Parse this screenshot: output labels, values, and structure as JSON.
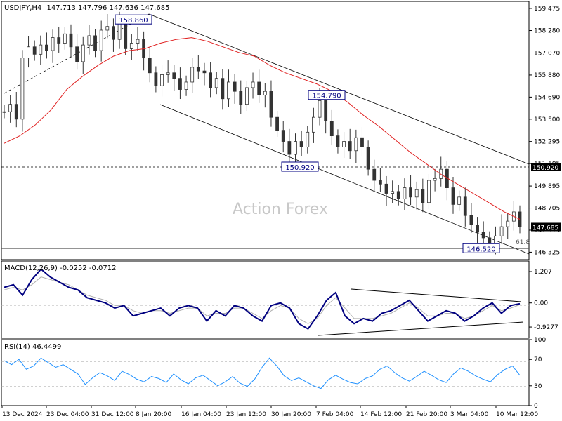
{
  "chart_data": [
    {
      "type": "candlestick",
      "title": "USDJPY,H4",
      "ohlc_text": "147.713 147.796 147.636 147.685",
      "watermark": "Action Forex",
      "ylim": [
        146.0,
        159.7
      ],
      "y_ticks": [
        "159.475",
        "158.280",
        "157.070",
        "155.880",
        "154.690",
        "153.500",
        "152.295",
        "151.105",
        "149.895",
        "148.705",
        "147.515",
        "146.325"
      ],
      "x_ticks": [
        "13 Dec 2024",
        "23 Dec 04:00",
        "31 Dec 12:00",
        "8 Jan 20:00",
        "16 Jan 04:00",
        "23 Jan 12:00",
        "30 Jan 20:00",
        "7 Feb 04:00",
        "14 Feb 12:00",
        "21 Feb 20:00",
        "3 Mar 04:00",
        "10 Mar 12:00"
      ],
      "close_series": [
        153.9,
        154.3,
        153.5,
        156.8,
        157.4,
        157.0,
        157.5,
        157.2,
        157.9,
        157.6,
        158.1,
        157.4,
        156.6,
        157.5,
        158.0,
        157.2,
        158.3,
        158.5,
        157.8,
        158.7,
        157.3,
        157.6,
        157.8,
        156.8,
        156.0,
        155.3,
        155.9,
        156.0,
        155.7,
        155.1,
        155.5,
        156.3,
        156.1,
        156.0,
        155.2,
        155.7,
        154.6,
        155.5,
        155.0,
        154.3,
        155.2,
        155.5,
        154.8,
        155.0,
        153.6,
        152.9,
        152.3,
        151.6,
        152.3,
        152.0,
        152.8,
        153.6,
        154.5,
        153.4,
        152.6,
        152.0,
        152.3,
        151.8,
        152.5,
        152.0,
        150.8,
        150.2,
        150.0,
        149.5,
        149.6,
        149.2,
        149.8,
        149.3,
        149.7,
        149.0,
        150.2,
        150.3,
        150.8,
        149.8,
        148.9,
        149.3,
        148.3,
        147.8,
        147.4,
        147.1,
        146.8,
        147.2,
        147.7,
        148.0,
        148.5,
        147.7
      ],
      "ma_series": [
        152.2,
        152.6,
        153.2,
        154.0,
        155.1,
        155.8,
        156.4,
        156.9,
        157.2,
        157.3,
        157.6,
        157.8,
        157.9,
        157.7,
        157.4,
        157.1,
        156.9,
        156.4,
        156.0,
        155.7,
        155.4,
        155.0,
        154.4,
        153.7,
        153.1,
        152.4,
        151.7,
        151.1,
        150.5,
        150.0,
        149.5,
        149.0,
        148.5,
        148.1
      ],
      "annotations": [
        {
          "label": "158.860",
          "value": 158.86
        },
        {
          "label": "154.790",
          "value": 154.79
        },
        {
          "label": "150.920",
          "value": 150.92
        },
        {
          "label": "146.520",
          "value": 146.52
        },
        {
          "label": "61.8"
        }
      ],
      "horizontal_lines": [
        {
          "value": 150.92,
          "label": "150.920",
          "style": "dashed"
        },
        {
          "value": 147.685,
          "label": "147.685",
          "style": "solid"
        },
        {
          "value": 146.52,
          "style": "solid"
        }
      ],
      "grid": false,
      "colors": {
        "candle": "#333333",
        "ma": "#e02020",
        "background": "#ffffff",
        "channel": "#000000",
        "price_tag": "#000000"
      }
    },
    {
      "type": "line",
      "title": "MACD(12,26,9) -0.0252 -0.0712",
      "ylim": [
        -1.25,
        1.45
      ],
      "y_ticks": [
        "1.207",
        "0.00",
        "-0.9277"
      ],
      "current_values": {
        "macd": "-0.0252",
        "signal": "-0.0712"
      },
      "macd_series": [
        0.6,
        0.7,
        0.3,
        0.9,
        1.3,
        1.0,
        0.8,
        0.6,
        0.5,
        0.2,
        0.1,
        0.0,
        -0.2,
        -0.1,
        -0.5,
        -0.4,
        -0.3,
        -0.2,
        -0.5,
        -0.2,
        -0.1,
        -0.2,
        -0.7,
        -0.3,
        -0.5,
        -0.1,
        -0.2,
        -0.5,
        -0.7,
        -0.1,
        0.0,
        -0.2,
        -0.8,
        -1.0,
        -0.5,
        0.1,
        0.4,
        -0.5,
        -0.8,
        -0.6,
        -0.7,
        -0.4,
        -0.3,
        -0.1,
        0.1,
        -0.3,
        -0.7,
        -0.5,
        -0.3,
        -0.4,
        -0.7,
        -0.5,
        -0.2,
        0.0,
        -0.4,
        -0.1,
        -0.03
      ],
      "signal_series": [
        0.5,
        0.6,
        0.5,
        0.7,
        1.0,
        0.9,
        0.8,
        0.7,
        0.5,
        0.3,
        0.2,
        0.1,
        -0.1,
        -0.1,
        -0.3,
        -0.4,
        -0.3,
        -0.3,
        -0.4,
        -0.3,
        -0.2,
        -0.2,
        -0.5,
        -0.4,
        -0.4,
        -0.2,
        -0.2,
        -0.4,
        -0.6,
        -0.3,
        -0.1,
        -0.2,
        -0.6,
        -0.8,
        -0.6,
        -0.1,
        0.2,
        -0.2,
        -0.6,
        -0.6,
        -0.6,
        -0.5,
        -0.4,
        -0.2,
        0.0,
        -0.2,
        -0.5,
        -0.5,
        -0.4,
        -0.4,
        -0.6,
        -0.5,
        -0.3,
        -0.1,
        -0.3,
        -0.2,
        -0.07
      ],
      "colors": {
        "macd": "#000080",
        "signal": "#b0b0b0",
        "trendlines": "#000000"
      }
    },
    {
      "type": "line",
      "title": "RSI(14) 46.4499",
      "ylim": [
        0,
        100
      ],
      "y_ticks": [
        "100",
        "70",
        "30",
        "0"
      ],
      "levels": [
        70,
        30
      ],
      "current_value": 46.4499,
      "rsi_series": [
        68,
        62,
        70,
        55,
        60,
        72,
        65,
        58,
        62,
        55,
        48,
        32,
        42,
        50,
        45,
        38,
        52,
        47,
        40,
        36,
        44,
        41,
        35,
        48,
        39,
        33,
        42,
        46,
        38,
        30,
        36,
        44,
        34,
        29,
        40,
        58,
        72,
        60,
        45,
        38,
        42,
        36,
        30,
        26,
        39,
        46,
        40,
        35,
        33,
        41,
        45,
        55,
        60,
        50,
        42,
        37,
        44,
        52,
        46,
        39,
        35,
        48,
        57,
        52,
        45,
        40,
        36,
        47,
        55,
        60,
        46
      ],
      "colors": {
        "rsi": "#1e90ff",
        "levels": "#a0a0a0"
      }
    }
  ]
}
